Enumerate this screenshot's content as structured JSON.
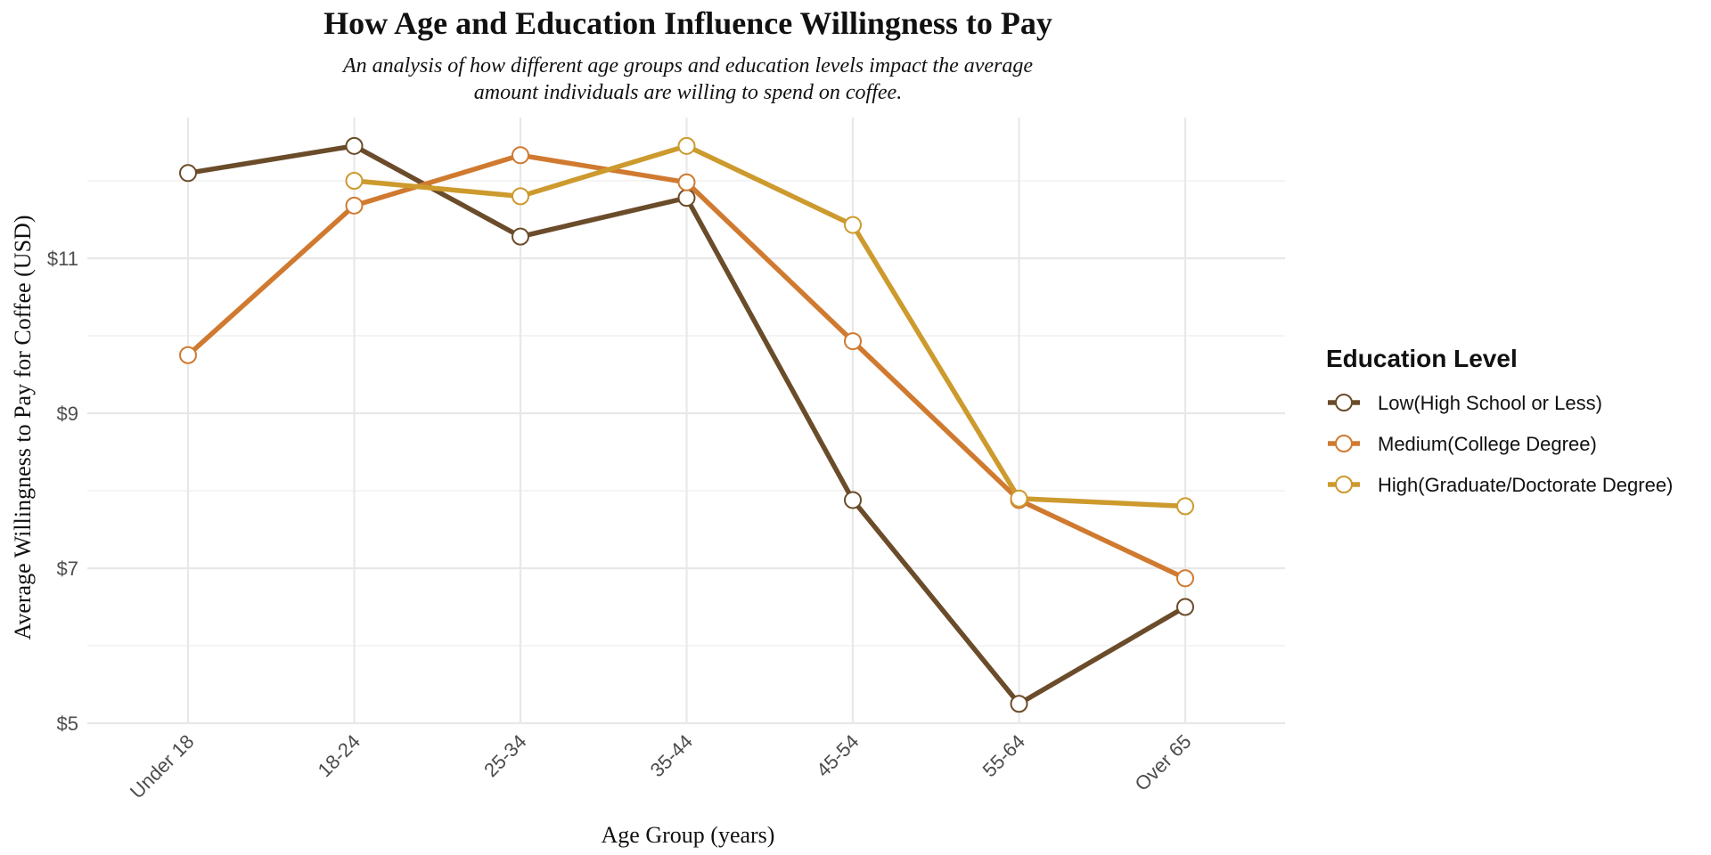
{
  "chart_data": {
    "type": "line",
    "title": "How Age and Education Influence Willingness to Pay",
    "subtitle_lines": [
      "An analysis of how different age groups and education levels impact the average",
      "amount individuals are willing to spend on coffee."
    ],
    "xlabel": "Age Group (years)",
    "ylabel": "Average Willingness to Pay for Coffee (USD)",
    "categories": [
      "Under 18",
      "18-24",
      "25-34",
      "35-44",
      "45-54",
      "55-64",
      "Over 65"
    ],
    "ylim": [
      4.85,
      13.0
    ],
    "y_ticks": [
      5,
      7,
      9,
      11
    ],
    "y_tick_labels": [
      "$5",
      "$7",
      "$9",
      "$11"
    ],
    "y_minor_ticks": [
      6,
      8,
      10,
      12
    ],
    "grid": true,
    "legend": {
      "title": "Education Level",
      "position": "right"
    },
    "series": [
      {
        "name": "Low(High School or Less)",
        "color": "#6b4c2a",
        "values": [
          12.1,
          12.45,
          11.28,
          11.78,
          7.88,
          5.25,
          6.5
        ]
      },
      {
        "name": "Medium(College Degree)",
        "color": "#d07a30",
        "values": [
          9.75,
          11.68,
          12.33,
          11.98,
          9.93,
          7.88,
          6.87
        ]
      },
      {
        "name": "High(Graduate/Doctorate Degree)",
        "color": "#cd9a2e",
        "values": [
          null,
          12.0,
          11.8,
          12.45,
          11.43,
          7.9,
          7.8
        ]
      }
    ]
  }
}
